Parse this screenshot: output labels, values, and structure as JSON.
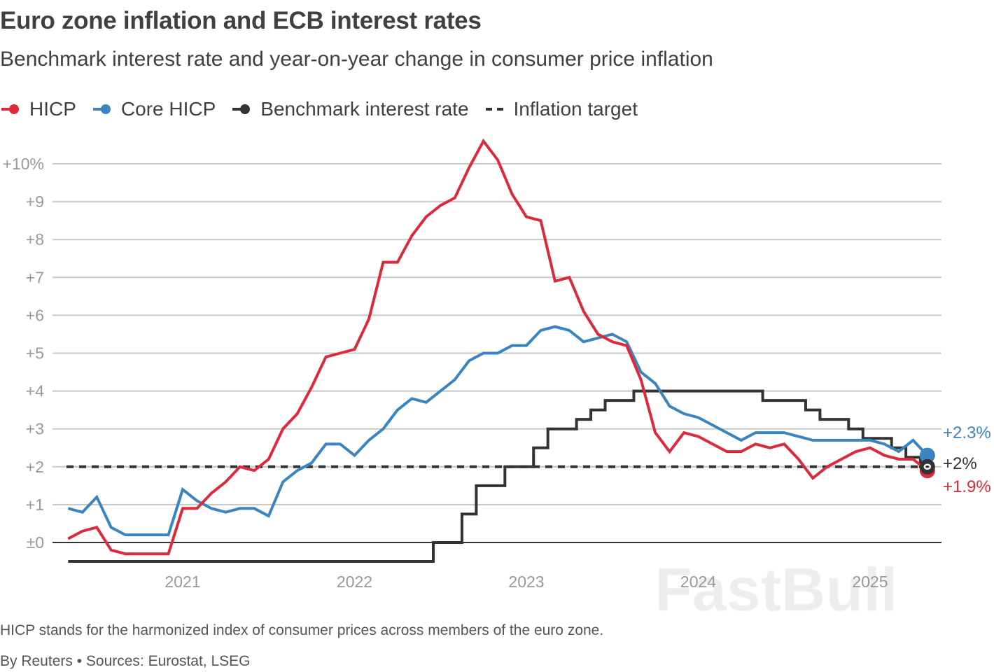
{
  "header": {
    "title": "Euro zone inflation and ECB interest rates",
    "subtitle": "Benchmark interest rate and year-on-year change in consumer price inflation"
  },
  "footer": {
    "note": "HICP stands for the harmonized index of consumer prices across members of the euro zone.",
    "source": "By Reuters • Sources: Eurostat, LSEG"
  },
  "watermark": "FastBull",
  "chart_data": {
    "type": "line",
    "title": "Euro zone inflation and ECB interest rates",
    "xlabel": "",
    "ylabel": "",
    "ylim": [
      -0.7,
      10.5
    ],
    "grid": true,
    "legend_position": "top-left",
    "x_ticks": [
      "2021",
      "2022",
      "2023",
      "2024",
      "2025"
    ],
    "y_ticks": [
      {
        "value": 0,
        "label": "±0"
      },
      {
        "value": 1,
        "label": "+1"
      },
      {
        "value": 2,
        "label": "+2"
      },
      {
        "value": 3,
        "label": "+3"
      },
      {
        "value": 4,
        "label": "+4"
      },
      {
        "value": 5,
        "label": "+5"
      },
      {
        "value": 6,
        "label": "+6"
      },
      {
        "value": 7,
        "label": "+7"
      },
      {
        "value": 8,
        "label": "+8"
      },
      {
        "value": 9,
        "label": "+9"
      },
      {
        "value": 10,
        "label": "+10%"
      }
    ],
    "x": [
      "2020-05",
      "2020-06",
      "2020-07",
      "2020-08",
      "2020-09",
      "2020-10",
      "2020-11",
      "2020-12",
      "2021-01",
      "2021-02",
      "2021-03",
      "2021-04",
      "2021-05",
      "2021-06",
      "2021-07",
      "2021-08",
      "2021-09",
      "2021-10",
      "2021-11",
      "2021-12",
      "2022-01",
      "2022-02",
      "2022-03",
      "2022-04",
      "2022-05",
      "2022-06",
      "2022-07",
      "2022-08",
      "2022-09",
      "2022-10",
      "2022-11",
      "2022-12",
      "2023-01",
      "2023-02",
      "2023-03",
      "2023-04",
      "2023-05",
      "2023-06",
      "2023-07",
      "2023-08",
      "2023-09",
      "2023-10",
      "2023-11",
      "2023-12",
      "2024-01",
      "2024-02",
      "2024-03",
      "2024-04",
      "2024-05",
      "2024-06",
      "2024-07",
      "2024-08",
      "2024-09",
      "2024-10",
      "2024-11",
      "2024-12",
      "2025-01",
      "2025-02",
      "2025-03",
      "2025-04",
      "2025-05"
    ],
    "series": [
      {
        "name": "HICP",
        "color": "#dc2a3b",
        "style": "line",
        "end_label": "+1.9%",
        "values": [
          0.1,
          0.3,
          0.4,
          -0.2,
          -0.3,
          -0.3,
          -0.3,
          -0.3,
          0.9,
          0.9,
          1.3,
          1.6,
          2.0,
          1.9,
          2.2,
          3.0,
          3.4,
          4.1,
          4.9,
          5.0,
          5.1,
          5.9,
          7.4,
          7.4,
          8.1,
          8.6,
          8.9,
          9.1,
          9.9,
          10.6,
          10.1,
          9.2,
          8.6,
          8.5,
          6.9,
          7.0,
          6.1,
          5.5,
          5.3,
          5.2,
          4.3,
          2.9,
          2.4,
          2.9,
          2.8,
          2.6,
          2.4,
          2.4,
          2.6,
          2.5,
          2.6,
          2.2,
          1.7,
          2.0,
          2.2,
          2.4,
          2.5,
          2.3,
          2.2,
          2.2,
          1.9
        ]
      },
      {
        "name": "Core HICP",
        "color": "#3a85c1",
        "style": "line",
        "end_label": "+2.3%",
        "values": [
          0.9,
          0.8,
          1.2,
          0.4,
          0.2,
          0.2,
          0.2,
          0.2,
          1.4,
          1.1,
          0.9,
          0.8,
          0.9,
          0.9,
          0.7,
          1.6,
          1.9,
          2.1,
          2.6,
          2.6,
          2.3,
          2.7,
          3.0,
          3.5,
          3.8,
          3.7,
          4.0,
          4.3,
          4.8,
          5.0,
          5.0,
          5.2,
          5.2,
          5.6,
          5.7,
          5.6,
          5.3,
          5.4,
          5.5,
          5.3,
          4.5,
          4.2,
          3.6,
          3.4,
          3.3,
          3.1,
          2.9,
          2.7,
          2.9,
          2.9,
          2.9,
          2.8,
          2.7,
          2.7,
          2.7,
          2.7,
          2.7,
          2.6,
          2.4,
          2.7,
          2.3
        ]
      },
      {
        "name": "Benchmark interest rate",
        "color": "#333333",
        "style": "step",
        "end_label": "+2%",
        "values": [
          -0.5,
          -0.5,
          -0.5,
          -0.5,
          -0.5,
          -0.5,
          -0.5,
          -0.5,
          -0.5,
          -0.5,
          -0.5,
          -0.5,
          -0.5,
          -0.5,
          -0.5,
          -0.5,
          -0.5,
          -0.5,
          -0.5,
          -0.5,
          -0.5,
          -0.5,
          -0.5,
          -0.5,
          -0.5,
          -0.5,
          0,
          0,
          0.75,
          1.5,
          1.5,
          2.0,
          2.0,
          2.5,
          3.0,
          3.0,
          3.25,
          3.5,
          3.75,
          3.75,
          4,
          4,
          4,
          4,
          4,
          4,
          4,
          4,
          4,
          3.75,
          3.75,
          3.75,
          3.5,
          3.25,
          3.25,
          3.0,
          2.75,
          2.75,
          2.5,
          2.25,
          2.0
        ]
      },
      {
        "name": "Inflation target",
        "color": "#333333",
        "style": "dashed",
        "value": 2
      }
    ]
  }
}
